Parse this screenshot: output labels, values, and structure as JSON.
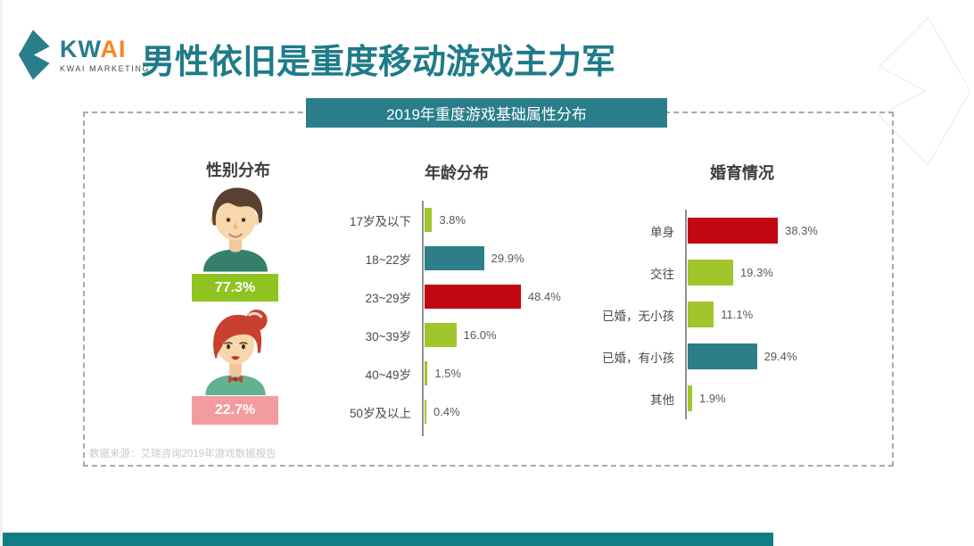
{
  "logo": {
    "kw": "KW",
    "ai": "AI",
    "subtitle": "KWAI MARKETING"
  },
  "title": "男性依旧是重度移动游戏主力军",
  "panel": {
    "header": "2019年重度游戏基础属性分布",
    "source": "数据来源：艾瑞咨询2019年游戏数据报告"
  },
  "colors": {
    "brand_teal": "#2a7d8b",
    "title_teal": "#1f7b89",
    "logo_orange": "#f5871f",
    "red": "#c00712",
    "teal": "#2e7e8a",
    "green": "#a0c62c",
    "green_male": "#8fc31f",
    "pink": "#f29ba0",
    "bottom_bar": "#117e84"
  },
  "chart_data": [
    {
      "id": "gender",
      "type": "pictogram-bar",
      "title": "性别分布",
      "series": [
        {
          "name": "male",
          "avatar": "male-avatar",
          "value": 77.3,
          "display": "77.3%",
          "color": "green_male"
        },
        {
          "name": "female",
          "avatar": "female-avatar",
          "value": 22.7,
          "display": "22.7%",
          "color": "pink"
        }
      ]
    },
    {
      "id": "age",
      "type": "bar",
      "orientation": "horizontal",
      "title": "年龄分布",
      "unit": "%",
      "xlim": [
        0,
        50
      ],
      "grid": false,
      "items": [
        {
          "label": "17岁及以下",
          "value": 3.8,
          "display": "3.8%",
          "color": "green"
        },
        {
          "label": "18~22岁",
          "value": 29.9,
          "display": "29.9%",
          "color": "teal"
        },
        {
          "label": "23~29岁",
          "value": 48.4,
          "display": "48.4%",
          "color": "red"
        },
        {
          "label": "30~39岁",
          "value": 16.0,
          "display": "16.0%",
          "color": "green"
        },
        {
          "label": "40~49岁",
          "value": 1.5,
          "display": "1.5%",
          "color": "green"
        },
        {
          "label": "50岁及以上",
          "value": 0.4,
          "display": "0.4%",
          "color": "green"
        }
      ]
    },
    {
      "id": "marital",
      "type": "bar",
      "orientation": "horizontal",
      "title": "婚育情况",
      "unit": "%",
      "xlim": [
        0,
        40
      ],
      "grid": false,
      "items": [
        {
          "label": "单身",
          "value": 38.3,
          "display": "38.3%",
          "color": "red"
        },
        {
          "label": "交往",
          "value": 19.3,
          "display": "19.3%",
          "color": "green"
        },
        {
          "label": "已婚，无小孩",
          "value": 11.1,
          "display": "11.1%",
          "color": "green"
        },
        {
          "label": "已婚，有小孩",
          "value": 29.4,
          "display": "29.4%",
          "color": "teal"
        },
        {
          "label": "其他",
          "value": 1.9,
          "display": "1.9%",
          "color": "green"
        }
      ]
    }
  ]
}
